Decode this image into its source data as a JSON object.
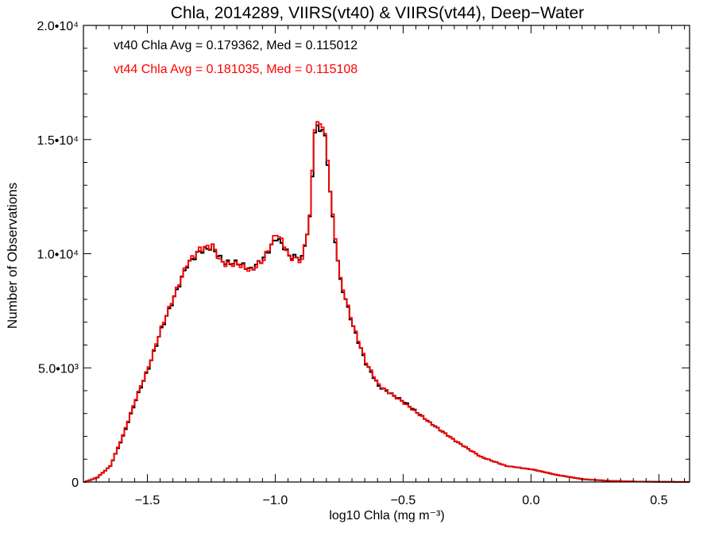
{
  "chart_data": {
    "type": "line",
    "title": "Chla, 2014289, VIIRS(vt40) & VIIRS(vt44), Deep−Water",
    "xlabel": "log10 Chla (mg m⁻³)",
    "ylabel": "Number of Observations",
    "xlim": [
      -1.75,
      0.62
    ],
    "ylim": [
      0,
      20000
    ],
    "grid": false,
    "x_ticks": [
      {
        "value": -1.5,
        "label": "−1.5"
      },
      {
        "value": -1.0,
        "label": "−1.0"
      },
      {
        "value": -0.5,
        "label": "−0.5"
      },
      {
        "value": 0.0,
        "label": "0.0"
      },
      {
        "value": 0.5,
        "label": "0.5"
      }
    ],
    "y_ticks": [
      {
        "value": 0,
        "label": "0"
      },
      {
        "value": 5000,
        "label": "5.0•10³"
      },
      {
        "value": 10000,
        "label": "1.0•10⁴"
      },
      {
        "value": 15000,
        "label": "1.5•10⁴"
      },
      {
        "value": 20000,
        "label": "2.0•10⁴"
      }
    ],
    "annotations": [
      {
        "text": "vt40 Chla Avg = 0.179362, Med = 0.115012",
        "color": "#000000"
      },
      {
        "text": "vt44 Chla Avg = 0.181035, Med = 0.115108",
        "color": "#ff0000"
      }
    ],
    "series": [
      {
        "color": "#000000",
        "x": [
          -1.75,
          -1.7,
          -1.65,
          -1.6,
          -1.55,
          -1.5,
          -1.45,
          -1.4,
          -1.35,
          -1.3,
          -1.25,
          -1.22,
          -1.2,
          -1.15,
          -1.1,
          -1.05,
          -1.0,
          -0.97,
          -0.95,
          -0.9,
          -0.87,
          -0.85,
          -0.82,
          -0.81,
          -0.8,
          -0.78,
          -0.75,
          -0.7,
          -0.65,
          -0.6,
          -0.5,
          -0.4,
          -0.3,
          -0.2,
          -0.1,
          0.0,
          0.1,
          0.2,
          0.3,
          0.4,
          0.5,
          0.62
        ],
        "values": [
          0,
          200,
          700,
          2000,
          3600,
          5000,
          6700,
          8100,
          9500,
          10100,
          10300,
          9800,
          9600,
          9600,
          9300,
          9800,
          10700,
          10300,
          9900,
          9800,
          11500,
          15400,
          15500,
          15000,
          14000,
          11500,
          8800,
          6800,
          5200,
          4200,
          3500,
          2600,
          1800,
          1100,
          700,
          550,
          300,
          120,
          50,
          20,
          10,
          0
        ]
      },
      {
        "color": "#ff0000",
        "x": [
          -1.75,
          -1.7,
          -1.65,
          -1.6,
          -1.55,
          -1.5,
          -1.45,
          -1.4,
          -1.35,
          -1.3,
          -1.25,
          -1.22,
          -1.2,
          -1.15,
          -1.1,
          -1.05,
          -1.0,
          -0.97,
          -0.95,
          -0.9,
          -0.87,
          -0.85,
          -0.82,
          -0.81,
          -0.8,
          -0.78,
          -0.75,
          -0.7,
          -0.65,
          -0.6,
          -0.5,
          -0.4,
          -0.3,
          -0.2,
          -0.1,
          0.0,
          0.1,
          0.2,
          0.3,
          0.4,
          0.5,
          0.62
        ],
        "values": [
          0,
          210,
          700,
          2050,
          3650,
          5050,
          6750,
          8150,
          9550,
          10200,
          10350,
          9700,
          9550,
          9550,
          9250,
          9750,
          10900,
          10400,
          9850,
          9700,
          11600,
          15600,
          15700,
          15100,
          14100,
          11600,
          8850,
          6850,
          5250,
          4250,
          3450,
          2600,
          1800,
          1100,
          700,
          560,
          310,
          130,
          55,
          20,
          10,
          0
        ]
      }
    ]
  }
}
